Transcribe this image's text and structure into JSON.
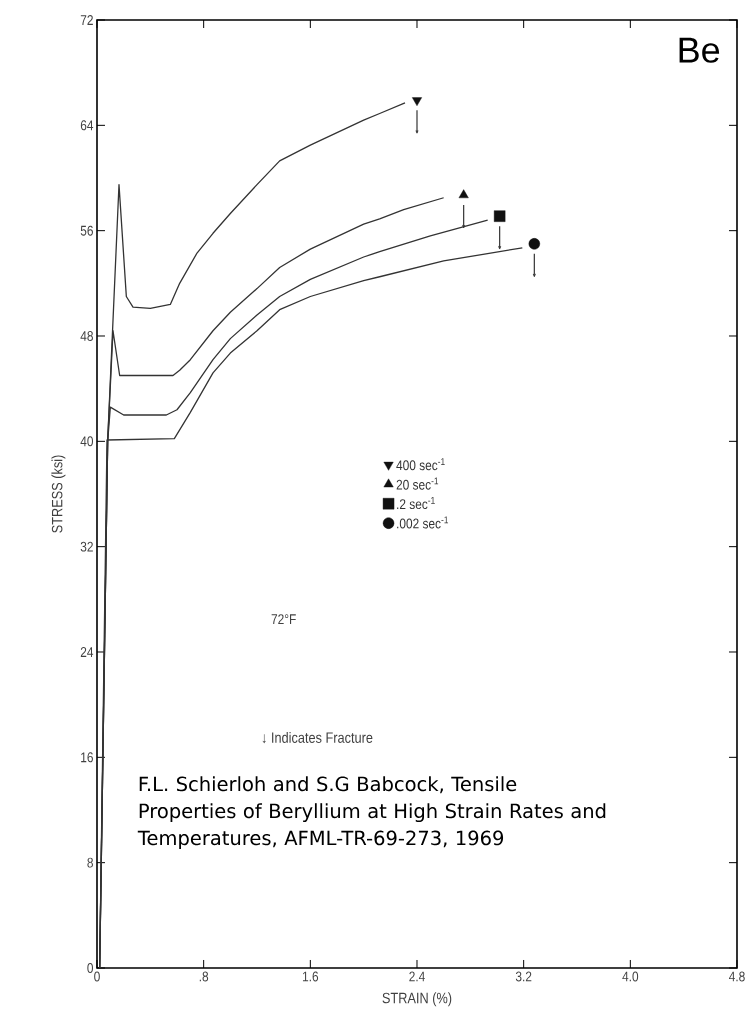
{
  "chart_data": {
    "type": "line",
    "title": "Be",
    "xlabel": "STRAIN (%)",
    "ylabel": "STRESS (ksi)",
    "xlim": [
      0,
      4.8
    ],
    "ylim": [
      0,
      72
    ],
    "xticks": [
      0,
      {
        "value": 0.8,
        "label": ".8"
      },
      1.6,
      2.4,
      3.2,
      {
        "value": 4.0,
        "label": "4.0"
      },
      4.8
    ],
    "yticks": [
      0,
      8,
      16,
      24,
      32,
      40,
      48,
      56,
      64,
      72
    ],
    "grid": false,
    "legend": "center",
    "line_style": "solid",
    "marker": "none",
    "annotations": [
      "72°F",
      "↓ Indicates Fracture",
      "F.L. Schierloh and S.G Babcock, Tensile Properties of Beryllium at High Strain Rates and Temperatures, AFML-TR-69-273, 1969"
    ],
    "series": [
      {
        "color": "#333333",
        "x": [
          0.02,
          0.08,
          0.165,
          0.22,
          0.27,
          0.4,
          0.55,
          0.62,
          0.75,
          0.87,
          1.0,
          1.2,
          1.37,
          1.6,
          2.0,
          2.12,
          2.31
        ],
        "values": [
          0,
          40,
          59.5,
          51,
          50.2,
          50.1,
          50.4,
          52,
          54.3,
          55.8,
          57.3,
          59.5,
          61.3,
          62.5,
          64.4,
          64.9,
          65.7
        ]
      },
      {
        "color": "#333333",
        "x": [
          0.02,
          0.08,
          0.12,
          0.17,
          0.57,
          0.62,
          0.7,
          0.87,
          1.0,
          1.2,
          1.37,
          1.6,
          2.0,
          2.12,
          2.3,
          2.6
        ],
        "values": [
          0,
          40,
          48.4,
          45,
          45,
          45.4,
          46.2,
          48.4,
          49.8,
          51.6,
          53.2,
          54.6,
          56.5,
          56.9,
          57.6,
          58.5
        ]
      },
      {
        "color": "#333333",
        "x": [
          0.02,
          0.08,
          0.1,
          0.2,
          0.52,
          0.6,
          0.7,
          0.87,
          1.0,
          1.2,
          1.37,
          1.6,
          2.0,
          2.12,
          2.5,
          2.93
        ],
        "values": [
          0,
          40,
          42.6,
          42,
          42,
          42.4,
          43.7,
          46.2,
          47.8,
          49.6,
          51,
          52.3,
          54.0,
          54.4,
          55.6,
          56.8
        ]
      },
      {
        "color": "#333333",
        "x": [
          0.02,
          0.075,
          0.58,
          0.7,
          0.87,
          1.0,
          1.2,
          1.37,
          1.6,
          2.0,
          2.12,
          2.6,
          3.19
        ],
        "values": [
          0,
          40.1,
          40.2,
          42.2,
          45.2,
          46.7,
          48.4,
          50,
          51.0,
          52.2,
          52.5,
          53.7,
          54.7
        ]
      },
      {
        "type": "scatter",
        "name": "400 sec$^{-1}$",
        "color": "#111111",
        "marker": "triangle-down",
        "x": [
          2.4
        ],
        "values": [
          65.9
        ]
      },
      {
        "type": "scatter",
        "name": "20 sec$^{-1}$",
        "color": "#111111",
        "marker": "triangle",
        "x": [
          2.75
        ],
        "values": [
          58.7
        ]
      },
      {
        "type": "scatter",
        "name": ".2 sec$^{-1}$",
        "color": "#111111",
        "marker": "square",
        "x": [
          3.02
        ],
        "values": [
          57.1
        ]
      },
      {
        "type": "scatter",
        "name": ".002 sec$^{-1}$",
        "color": "#111111",
        "marker": "circle",
        "x": [
          3.28
        ],
        "values": [
          55.0
        ]
      }
    ]
  }
}
